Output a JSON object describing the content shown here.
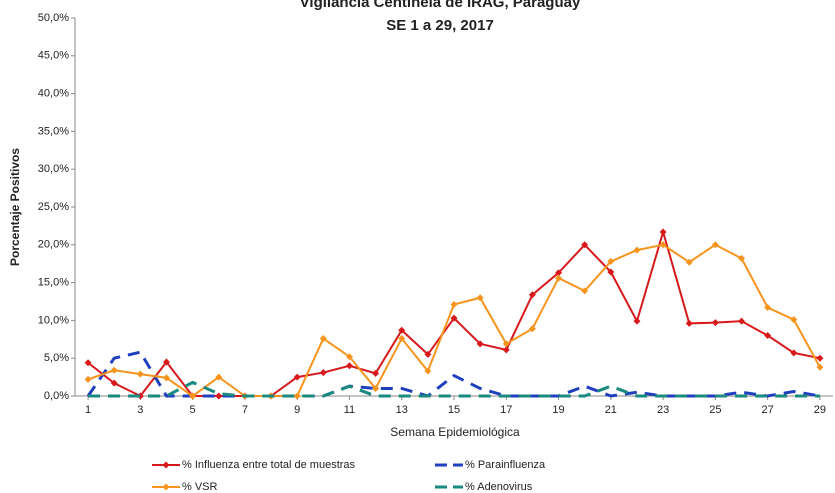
{
  "chart_data": {
    "type": "line",
    "title": "Vigilancia Centinela de IRAG, Paraguay",
    "subtitle": "SE 1 a 29, 2017",
    "x_label": "Semana Epidemiológica",
    "y_label": "Porcentaje Positivos",
    "x": [
      1,
      2,
      3,
      4,
      5,
      6,
      7,
      8,
      9,
      10,
      11,
      12,
      13,
      14,
      15,
      16,
      17,
      18,
      19,
      20,
      21,
      22,
      23,
      24,
      25,
      26,
      27,
      28,
      29
    ],
    "xlim": [
      0.5,
      29.5
    ],
    "xticks": [
      1,
      3,
      5,
      7,
      9,
      11,
      13,
      15,
      17,
      19,
      21,
      23,
      25,
      27,
      29
    ],
    "ylim": [
      0,
      50
    ],
    "yticks": [
      {
        "value": 0,
        "label": "0,0%"
      },
      {
        "value": 5,
        "label": "5,0%"
      },
      {
        "value": 10,
        "label": "10,0%"
      },
      {
        "value": 15,
        "label": "15,0%"
      },
      {
        "value": 20,
        "label": "20,0%"
      },
      {
        "value": 25,
        "label": "25,0%"
      },
      {
        "value": 30,
        "label": "30,0%"
      },
      {
        "value": 35,
        "label": "35,0%"
      },
      {
        "value": 40,
        "label": "40,0%"
      },
      {
        "value": 45,
        "label": "45,0%"
      },
      {
        "value": 50,
        "label": "50,0%"
      }
    ],
    "series": [
      {
        "name": "% Influenza entre total de muestras",
        "color": "#d7191c",
        "marker": "diamond",
        "dashed": false,
        "width": 2,
        "values": [
          4.4,
          1.7,
          0,
          4.5,
          0,
          0,
          0,
          0,
          2.5,
          3.1,
          4.0,
          3.0,
          8.7,
          5.5,
          10.3,
          6.9,
          6.1,
          13.4,
          16.3,
          20.0,
          16.4,
          9.9,
          21.7,
          9.6,
          9.7,
          9.9,
          8.0,
          5.7,
          5.0
        ]
      },
      {
        "name": "% Parainfluenza",
        "color": "#1f3fbf",
        "marker": null,
        "dashed": true,
        "width": 3,
        "values": [
          0,
          5.0,
          5.8,
          0,
          0,
          0,
          0,
          0,
          0,
          0,
          1.3,
          1.0,
          1.0,
          0,
          2.7,
          1.0,
          0,
          0,
          0,
          1.3,
          0,
          0.5,
          0,
          0,
          0,
          0.5,
          0,
          0.6,
          0
        ]
      },
      {
        "name": "% VSR",
        "color": "#f7941d",
        "marker": "diamond",
        "dashed": false,
        "width": 2,
        "values": [
          2.2,
          3.4,
          2.9,
          2.4,
          0,
          2.5,
          0,
          0,
          0,
          7.6,
          5.2,
          1.0,
          7.6,
          3.3,
          12.1,
          13.0,
          6.9,
          8.9,
          15.6,
          13.9,
          17.8,
          19.3,
          20.0,
          17.7,
          20.0,
          18.2,
          11.7,
          10.1,
          3.8
        ]
      },
      {
        "name": "% Adenovirus",
        "color": "#1a8a80",
        "marker": null,
        "dashed": true,
        "width": 3,
        "values": [
          0,
          0,
          0,
          0,
          1.8,
          0.3,
          0,
          0,
          0,
          0,
          1.3,
          0,
          0,
          0,
          0,
          0,
          0,
          0,
          0,
          0,
          1.3,
          0,
          0,
          0,
          0,
          0,
          0,
          0,
          0
        ]
      }
    ],
    "grid": true
  }
}
